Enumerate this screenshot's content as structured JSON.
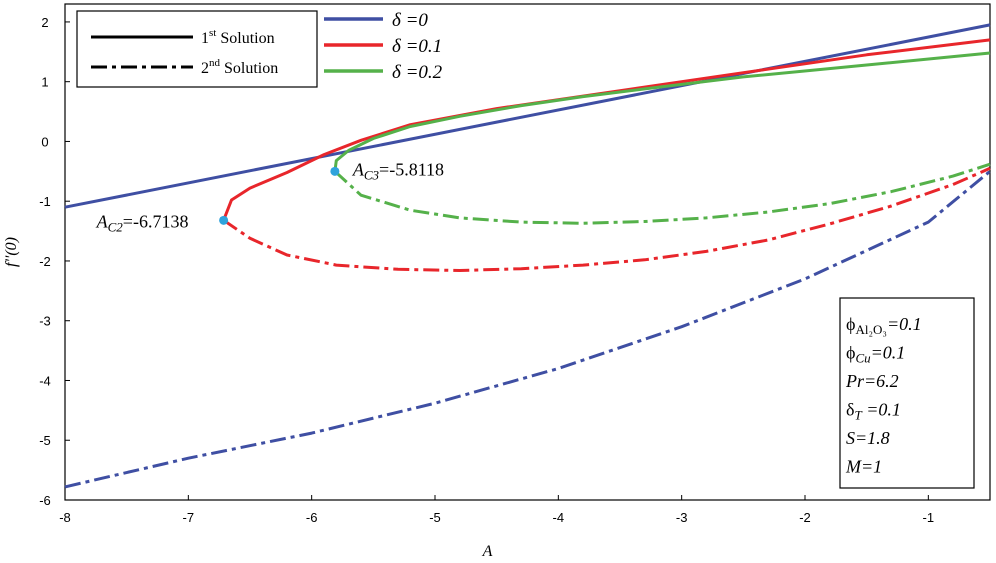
{
  "chart_data": {
    "type": "line",
    "title": "",
    "xlabel": "A",
    "ylabel": "f''(0)",
    "xlim": [
      -8,
      -0.5
    ],
    "ylim": [
      -6,
      2.3
    ],
    "xticks": [
      -8,
      -7,
      -6,
      -5,
      -4,
      -3,
      -2,
      -1
    ],
    "yticks": [
      2,
      1,
      0,
      -1,
      -2,
      -3,
      -4,
      -5,
      -6
    ],
    "grid": false,
    "colors": {
      "blue": "#3f4fa3",
      "red": "#e8262b",
      "green": "#55b14a",
      "point": "#2fa3dc"
    },
    "linestyle_legend": [
      {
        "label": "Solution",
        "sup": "st",
        "num": "1",
        "style": "solid"
      },
      {
        "label": "Solution",
        "sup": "nd",
        "num": "2",
        "style": "dashdot"
      }
    ],
    "series": [
      {
        "name": "δ =0",
        "delta_label": "δ",
        "value_label": " =0",
        "color_key": "blue",
        "style": "solid",
        "x": [
          -8,
          -0.5
        ],
        "y": [
          -1.1,
          1.95
        ]
      },
      {
        "name": "δ =0",
        "color_key": "blue",
        "style": "dashdot",
        "x": [
          -8,
          -7,
          -6,
          -5,
          -4,
          -3,
          -2,
          -1,
          -0.5
        ],
        "y": [
          -5.78,
          -5.3,
          -4.88,
          -4.38,
          -3.8,
          -3.1,
          -2.3,
          -1.35,
          -0.5
        ]
      },
      {
        "name": "δ =0.1",
        "delta_label": "δ",
        "value_label": " =0.1",
        "color_key": "red",
        "style": "solid",
        "x": [
          -6.7138,
          -6.65,
          -6.5,
          -6.2,
          -5.9,
          -5.6,
          -5.2,
          -4.5,
          -3.5,
          -2.5,
          -1.5,
          -0.5
        ],
        "y": [
          -1.32,
          -0.98,
          -0.78,
          -0.52,
          -0.22,
          0.02,
          0.28,
          0.55,
          0.85,
          1.15,
          1.45,
          1.7
        ]
      },
      {
        "name": "δ =0.1",
        "color_key": "red",
        "style": "dashdot",
        "x": [
          -6.7138,
          -6.5,
          -6.2,
          -5.8,
          -5.3,
          -4.8,
          -4.3,
          -3.8,
          -3.3,
          -2.8,
          -2.3,
          -1.8,
          -1.3,
          -0.8,
          -0.5
        ],
        "y": [
          -1.32,
          -1.62,
          -1.9,
          -2.07,
          -2.14,
          -2.16,
          -2.13,
          -2.07,
          -1.98,
          -1.84,
          -1.65,
          -1.38,
          -1.08,
          -0.72,
          -0.45
        ]
      },
      {
        "name": "δ =0.2",
        "delta_label": "δ",
        "value_label": " =0.2",
        "color_key": "green",
        "style": "solid",
        "x": [
          -5.8118,
          -5.8,
          -5.7,
          -5.5,
          -5.2,
          -4.8,
          -4.3,
          -3.8,
          -3.3,
          -2.5,
          -1.5,
          -0.5
        ],
        "y": [
          -0.5,
          -0.32,
          -0.15,
          0.05,
          0.25,
          0.42,
          0.6,
          0.75,
          0.88,
          1.08,
          1.28,
          1.48
        ]
      },
      {
        "name": "δ =0.2",
        "color_key": "green",
        "style": "dashdot",
        "x": [
          -5.8118,
          -5.6,
          -5.2,
          -4.8,
          -4.3,
          -3.8,
          -3.3,
          -2.8,
          -2.3,
          -1.8,
          -1.3,
          -0.8,
          -0.5
        ],
        "y": [
          -0.5,
          -0.9,
          -1.15,
          -1.28,
          -1.35,
          -1.37,
          -1.34,
          -1.28,
          -1.18,
          -1.04,
          -0.84,
          -0.58,
          -0.38
        ]
      }
    ],
    "critical_points": [
      {
        "x": -6.7138,
        "y": -1.32,
        "label_main": "A",
        "label_sub": "C2",
        "label_value": "=-6.7138"
      },
      {
        "x": -5.8118,
        "y": -0.5,
        "label_main": "A",
        "label_sub": "C3",
        "label_value": "=-5.8118"
      }
    ],
    "parameters": [
      {
        "main": "ϕ",
        "sub": "Al₂O₃",
        "value": "=0.1"
      },
      {
        "main": "ϕ",
        "sub": "Cu",
        "value": "=0.1"
      },
      {
        "main": "Pr",
        "sub": "",
        "value": "=6.2"
      },
      {
        "main": "δ",
        "sub": "T",
        "value": " =0.1"
      },
      {
        "main": "S",
        "sub": "",
        "value": "=1.8"
      },
      {
        "main": "M",
        "sub": "",
        "value": "=1"
      }
    ]
  }
}
